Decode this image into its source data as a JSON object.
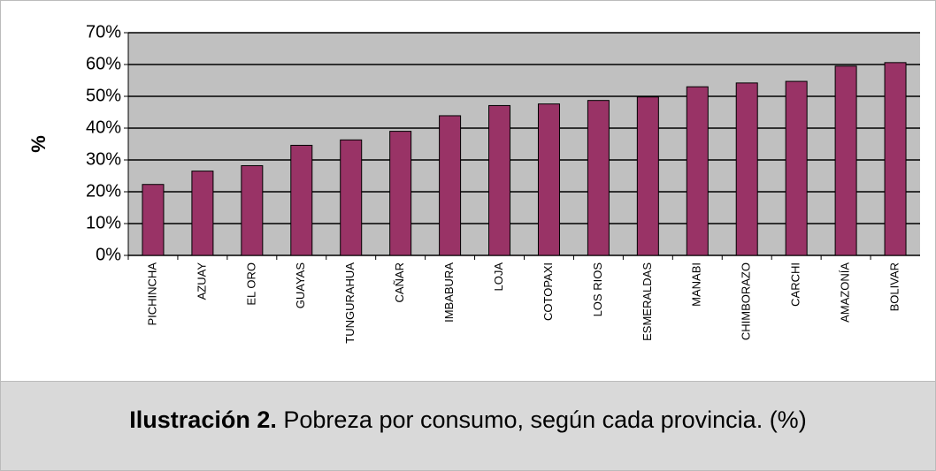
{
  "chart_data": {
    "type": "bar",
    "y_label": "%",
    "categories": [
      "PICHINCHA",
      "AZUAY",
      "EL ORO",
      "GUAYAS",
      "TUNGURAHUA",
      "CAÑAR",
      "IMBABURA",
      "LOJA",
      "COTOPAXI",
      "LOS RIOS",
      "ESMERALDAS",
      "MANABI",
      "CHIMBORAZO",
      "CARCHI",
      "AMAZONÍA",
      "BOLIVAR"
    ],
    "values": [
      22.3,
      26.5,
      28.2,
      34.6,
      36.3,
      39.0,
      43.9,
      47.1,
      47.6,
      48.7,
      49.8,
      53.0,
      54.2,
      54.7,
      59.5,
      60.6
    ],
    "color": "#993366",
    "ylim": [
      0,
      70
    ],
    "yticks": [
      {
        "value": 0,
        "label": "0%"
      },
      {
        "value": 10,
        "label": "10%"
      },
      {
        "value": 20,
        "label": "20%"
      },
      {
        "value": 30,
        "label": "30%"
      },
      {
        "value": 40,
        "label": "40%"
      },
      {
        "value": 50,
        "label": "50%"
      },
      {
        "value": 60,
        "label": "60%"
      },
      {
        "value": 70,
        "label": "70%"
      }
    ],
    "grid": true
  },
  "caption": {
    "label": "Ilustración 2.",
    "text": "Pobreza por consumo, según cada provincia. (%)"
  }
}
